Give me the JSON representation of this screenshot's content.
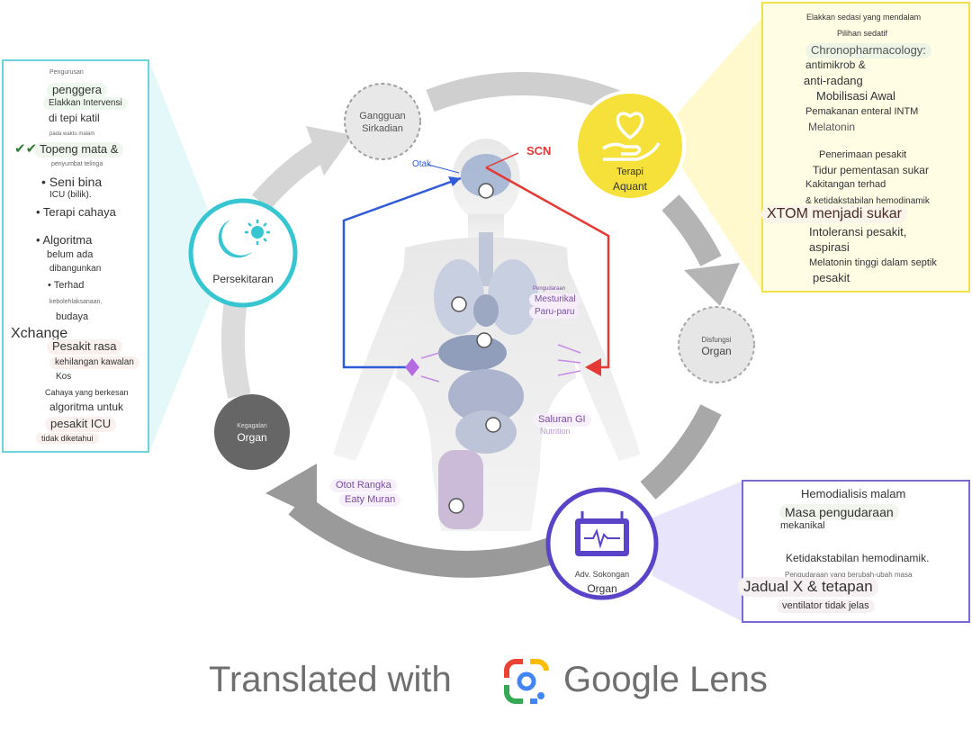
{
  "colors": {
    "cycle_arrow": "#c8c8c8",
    "cycle_arrow_dark": "#9e9e9e",
    "teal": "#35c6d1",
    "yellow": "#f5e13a",
    "purple": "#5b43c9",
    "red": "#e53935",
    "blue": "#2f5bd8",
    "lavender": "#b46ae0"
  },
  "nodes": {
    "circadian": {
      "line1": "Gangguan",
      "line2": "Sirkadian"
    },
    "environment": {
      "label": "Persekitaran"
    },
    "therapy": {
      "line1": "Terapi",
      "line2": "Aquant"
    },
    "dysfunction": {
      "line1": "Disfungsi",
      "line2": "Organ"
    },
    "failure": {
      "line1": "Kegagalan",
      "line2": "Organ"
    },
    "support": {
      "line1": "Adv. Sokongan",
      "line2": "Organ"
    }
  },
  "body": {
    "brain": "Otak",
    "scn": "SCN",
    "lungs_small": "Pengudaraan",
    "lungs_1": "Mesturikal",
    "lungs_2": "Paru-paru",
    "gi_1": "Saluran GI",
    "gi_2": "Nutrition",
    "muscle_1": "Otot Rangka",
    "muscle_2": "Eaty Muran"
  },
  "left_panel": {
    "r1": "Pengurusan",
    "r2": "penggera",
    "r3": "Elakkan Intervensi",
    "r4": "di tepi katil",
    "r5": "pada waktu malam",
    "r6_check": "✔✔",
    "r6": "Topeng mata &",
    "r7": "penyumbat telinga",
    "r8": "• Seni bina",
    "r9": "ICU (bilik).",
    "r10": "• Terapi cahaya",
    "r11": "• Algoritma",
    "r12": "belum ada",
    "r13": "dibangunkan",
    "r14": "• Terhad",
    "r15": "kebolehlaksanaan,",
    "r16": "budaya",
    "r17": "Xchange",
    "r18": "Pesakit rasa",
    "r19": "kehilangan kawalan",
    "r20": "Kos",
    "r21": "Cahaya yang berkesan",
    "r22": "algoritma untuk",
    "r23": "pesakit ICU",
    "r24": "tidak diketahui"
  },
  "right_top_panel": {
    "r1": "Elakkan sedasi yang mendalam",
    "r2": "Pilihan sedatif",
    "r3": "Chronopharmacology:",
    "r4": "antimikrob &",
    "r5": "anti-radang",
    "r6": "Mobilisasi Awal",
    "r7": "Pemakanan enteral INTM",
    "r8": "Melatonin",
    "r9": "Penerimaan pesakit",
    "r10": "Tidur pementasan sukar",
    "r11": "Kakitangan terhad",
    "r12": "& ketidakstabilan hemodinamik",
    "r13": "XTOM menjadi sukar",
    "r14": "Intoleransi pesakit,",
    "r15": "aspirasi",
    "r16": "Melatonin tinggi dalam septik",
    "r17": "pesakit"
  },
  "right_bottom_panel": {
    "r1": "Hemodialisis malam",
    "r2": "Masa pengudaraan",
    "r3": "mekanikal",
    "r4": "Ketidakstabilan hemodinamik.",
    "r5": "Pengudaraan yang berubah-ubah masa",
    "r6": "Jadual X & tetapan",
    "r7": "ventilator tidak jelas"
  },
  "footer": {
    "translated": "Translated with",
    "brand": "Google Lens"
  }
}
